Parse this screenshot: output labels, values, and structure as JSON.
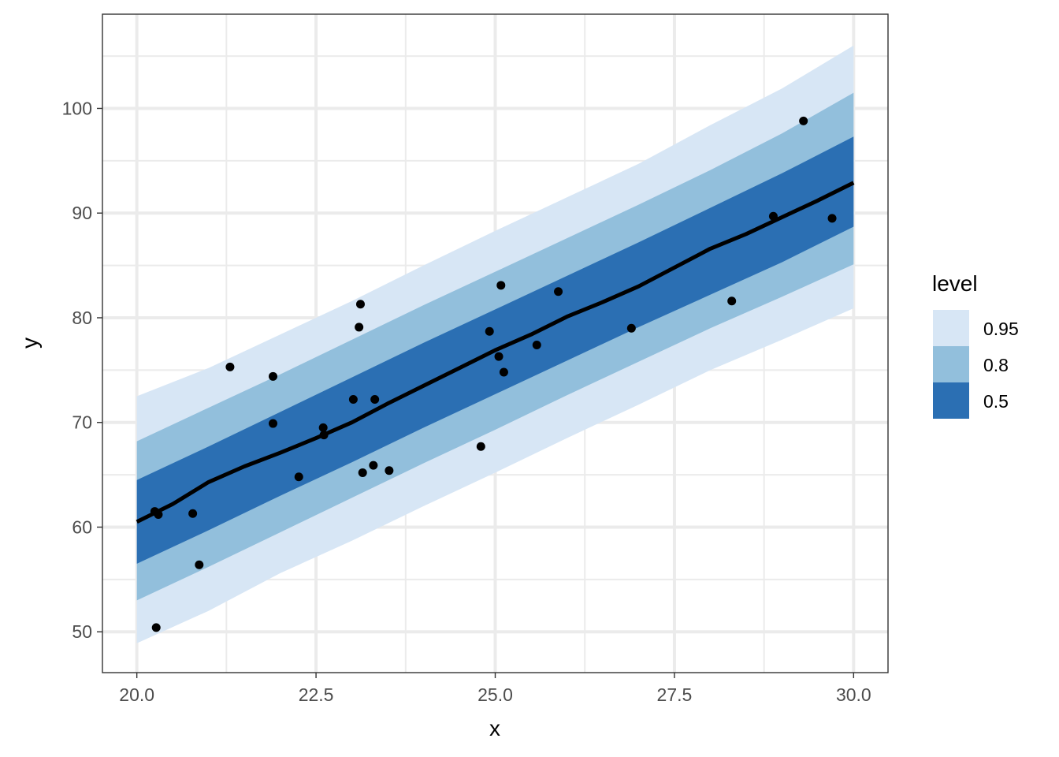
{
  "chart_data": {
    "type": "line",
    "xlabel": "x",
    "ylabel": "y",
    "xlim": [
      19.52,
      30.48
    ],
    "ylim": [
      46.1,
      109.0
    ],
    "x_ticks": [
      "20.0",
      "22.5",
      "25.0",
      "27.5",
      "30.0"
    ],
    "x_tick_values": [
      20.0,
      22.5,
      25.0,
      27.5,
      30.0
    ],
    "y_ticks": [
      "50",
      "60",
      "70",
      "80",
      "90",
      "100"
    ],
    "y_tick_values": [
      50,
      60,
      70,
      80,
      90,
      100
    ],
    "grid": true,
    "legend": {
      "title": "level",
      "position": "right",
      "entries": [
        {
          "label": "0.95",
          "color": "#d7e6f5"
        },
        {
          "label": "0.8",
          "color": "#92bfdc"
        },
        {
          "label": "0.5",
          "color": "#2b6fb3"
        }
      ]
    },
    "ribbons": [
      {
        "level": "0.95",
        "color": "#d7e6f5",
        "x": [
          20.0,
          21.0,
          22.0,
          23.0,
          24.0,
          25.0,
          26.0,
          27.0,
          28.0,
          29.0,
          30.0
        ],
        "lower": [
          48.9,
          52.0,
          55.6,
          58.7,
          62.0,
          65.2,
          68.5,
          71.7,
          75.0,
          77.9,
          80.9
        ],
        "upper": [
          72.5,
          75.2,
          78.4,
          81.6,
          85.0,
          88.3,
          91.5,
          94.7,
          98.4,
          101.9,
          106.0
        ]
      },
      {
        "level": "0.8",
        "color": "#92bfdc",
        "x": [
          20.0,
          21.0,
          22.0,
          23.0,
          24.0,
          25.0,
          26.0,
          27.0,
          28.0,
          29.0,
          30.0
        ],
        "lower": [
          53.0,
          56.2,
          59.5,
          62.8,
          66.1,
          69.3,
          72.6,
          75.8,
          79.0,
          82.0,
          85.1
        ],
        "upper": [
          68.2,
          71.4,
          74.6,
          77.9,
          81.2,
          84.4,
          87.6,
          90.8,
          94.1,
          97.6,
          101.5
        ]
      },
      {
        "level": "0.5",
        "color": "#2b6fb3",
        "x": [
          20.0,
          21.0,
          22.0,
          23.0,
          24.0,
          25.0,
          26.0,
          27.0,
          28.0,
          29.0,
          30.0
        ],
        "lower": [
          56.5,
          59.7,
          63.0,
          66.2,
          69.5,
          72.7,
          75.9,
          79.1,
          82.2,
          85.3,
          88.7
        ],
        "upper": [
          64.5,
          67.7,
          71.0,
          74.3,
          77.6,
          80.8,
          84.0,
          87.2,
          90.5,
          93.8,
          97.3
        ]
      }
    ],
    "median_line": {
      "color": "#000000",
      "x": [
        20.0,
        20.5,
        21.0,
        21.5,
        22.0,
        22.5,
        23.0,
        23.5,
        24.0,
        24.5,
        25.0,
        25.5,
        26.0,
        26.5,
        27.0,
        27.5,
        28.0,
        28.5,
        29.0,
        29.5,
        30.0
      ],
      "y": [
        60.5,
        62.2,
        64.3,
        65.8,
        67.1,
        68.5,
        70.0,
        71.8,
        73.5,
        75.2,
        76.9,
        78.4,
        80.1,
        81.5,
        83.0,
        84.8,
        86.6,
        88.0,
        89.6,
        91.2,
        92.9
      ]
    },
    "points": {
      "color": "#000000",
      "x": [
        20.25,
        20.3,
        20.78,
        20.87,
        20.27,
        21.3,
        21.9,
        21.9,
        22.26,
        22.61,
        22.6,
        23.02,
        23.1,
        23.12,
        23.15,
        23.3,
        23.32,
        23.52,
        24.8,
        24.92,
        25.05,
        25.08,
        25.12,
        25.58,
        25.88,
        26.9,
        28.3,
        28.88,
        29.3,
        29.7
      ],
      "y": [
        61.5,
        61.2,
        61.3,
        56.4,
        50.4,
        75.3,
        74.4,
        69.9,
        64.8,
        68.8,
        69.5,
        72.2,
        79.1,
        81.3,
        65.2,
        65.9,
        72.2,
        65.4,
        67.7,
        78.7,
        76.3,
        83.1,
        74.8,
        77.4,
        82.5,
        79.0,
        81.6,
        89.7,
        98.8,
        89.5
      ]
    }
  }
}
